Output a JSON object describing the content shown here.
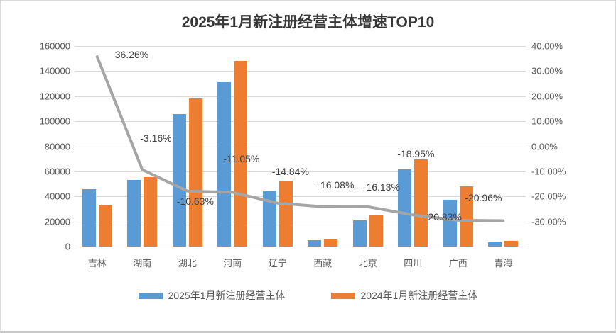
{
  "title": "2025年1月新注册经营主体增速TOP10",
  "chart_data": {
    "type": "bar",
    "subtype": "clustered-bars-with-line-overlay",
    "title": "2025年1月新注册经营主体增速TOP10",
    "categories": [
      "吉林",
      "湖南",
      "湖北",
      "河南",
      "辽宁",
      "西藏",
      "北京",
      "四川",
      "广西",
      "青海"
    ],
    "series": [
      {
        "name": "2025年1月新注册经营主体",
        "type": "bar",
        "color": "#5B9BD5",
        "values": [
          45800,
          53000,
          105800,
          131400,
          44500,
          5300,
          21000,
          61800,
          37500,
          3600
        ]
      },
      {
        "name": "2024年1月新注册经营主体",
        "type": "bar",
        "color": "#ED7D31",
        "values": [
          33300,
          55200,
          118200,
          147900,
          52600,
          6300,
          24900,
          69800,
          48200,
          4400
        ]
      }
    ],
    "line": {
      "color": "#A5A5A5",
      "values_pct": [
        36.26,
        -3.16,
        -10.63,
        -11.05,
        -14.84,
        -16.08,
        -16.13,
        -18.95,
        -20.83,
        -20.96
      ],
      "labels": [
        "36.26%",
        "-3.16%",
        "-10.63%",
        "-11.05%",
        "-14.84%",
        "-16.08%",
        "-16.13%",
        "-18.95%",
        "-20.83%",
        "-20.96%"
      ]
    },
    "left_axis": {
      "ticks": [
        "160000",
        "140000",
        "120000",
        "100000",
        "80000",
        "60000",
        "40000",
        "20000",
        "0"
      ],
      "min": 0,
      "max": 160000
    },
    "right_axis": {
      "ticks": [
        "40.00%",
        "30.00%",
        "20.00%",
        "10.00%",
        "0.00%",
        "-10.00%",
        "-20.00%",
        "-30.00%"
      ],
      "min": -30,
      "max": 40
    },
    "grid": true,
    "legend_position": "bottom",
    "legend": [
      "2025年1月新注册经营主体",
      "2024年1月新注册经营主体"
    ]
  },
  "colors": {
    "bar_2025": "#5B9BD5",
    "bar_2024": "#ED7D31",
    "growth_line": "#A5A5A5",
    "gridline": "#D9D9D9",
    "axis_text": "#595959",
    "label_text": "#404040"
  }
}
